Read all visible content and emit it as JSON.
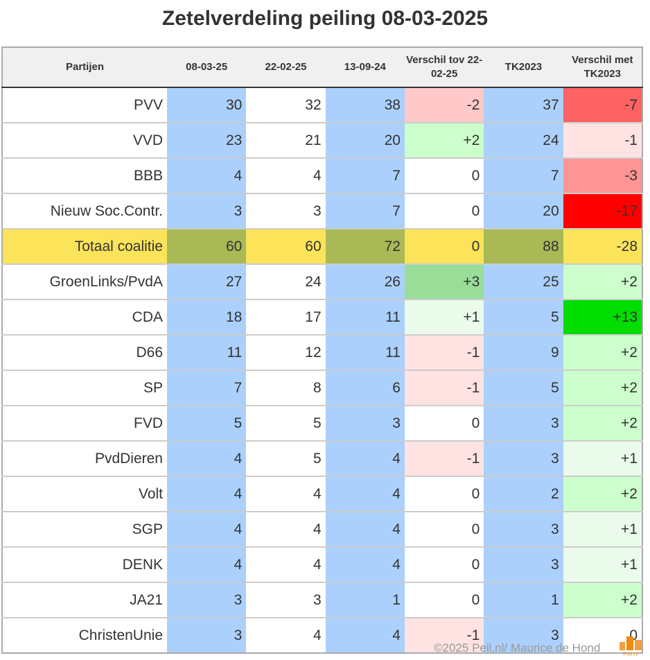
{
  "title": "Zetelverdeling peiling 08-03-2025",
  "footer": "©2025 Peil.nl/ Maurice de Hond",
  "logo_text": "Peil.nl",
  "colors": {
    "blue": "#abd0fb",
    "coalition": "#fbe35a",
    "coalition_blue": "#a8b956"
  },
  "chart_data": {
    "type": "table",
    "title": "Zetelverdeling peiling 08-03-2025",
    "columns": [
      "Partijen",
      "08-03-25",
      "22-02-25",
      "13-09-24",
      "Verschil tov 22-02-25",
      "TK2023",
      "Verschil met TK2023"
    ],
    "rows": [
      {
        "party": "PVV",
        "v": [
          "30",
          "32",
          "38",
          "-2",
          "37",
          "-7"
        ],
        "c4": "#ffc9c9",
        "c6": "#ff6262"
      },
      {
        "party": "VVD",
        "v": [
          "23",
          "21",
          "20",
          "+2",
          "24",
          "-1"
        ],
        "c4": "#ccffcc",
        "c6": "#ffe3e3"
      },
      {
        "party": "BBB",
        "v": [
          "4",
          "4",
          "7",
          "0",
          "7",
          "-3"
        ],
        "c4": "#ffffff",
        "c6": "#ff9494"
      },
      {
        "party": "Nieuw Soc.Contr.",
        "v": [
          "3",
          "3",
          "7",
          "0",
          "20",
          "-17"
        ],
        "c4": "#ffffff",
        "c6": "#ff0000"
      },
      {
        "party": "Totaal coalitie",
        "v": [
          "60",
          "60",
          "72",
          "0",
          "88",
          "-28"
        ],
        "coalition": true
      },
      {
        "party": "GroenLinks/PvdA",
        "v": [
          "27",
          "24",
          "26",
          "+3",
          "25",
          "+2"
        ],
        "c4": "#99dd99",
        "c6": "#ccffcc"
      },
      {
        "party": "CDA",
        "v": [
          "18",
          "17",
          "11",
          "+1",
          "5",
          "+13"
        ],
        "c4": "#ebfbeb",
        "c6": "#00dd00"
      },
      {
        "party": "D66",
        "v": [
          "11",
          "12",
          "11",
          "-1",
          "9",
          "+2"
        ],
        "c4": "#ffe3e3",
        "c6": "#ccffcc"
      },
      {
        "party": "SP",
        "v": [
          "7",
          "8",
          "6",
          "-1",
          "5",
          "+2"
        ],
        "c4": "#ffe3e3",
        "c6": "#ccffcc"
      },
      {
        "party": "FVD",
        "v": [
          "5",
          "5",
          "3",
          "0",
          "3",
          "+2"
        ],
        "c4": "#ffffff",
        "c6": "#ccffcc"
      },
      {
        "party": "PvdDieren",
        "v": [
          "4",
          "5",
          "4",
          "-1",
          "3",
          "+1"
        ],
        "c4": "#ffe3e3",
        "c6": "#ebfbeb"
      },
      {
        "party": "Volt",
        "v": [
          "4",
          "4",
          "4",
          "0",
          "2",
          "+2"
        ],
        "c4": "#ffffff",
        "c6": "#ccffcc"
      },
      {
        "party": "SGP",
        "v": [
          "4",
          "4",
          "4",
          "0",
          "3",
          "+1"
        ],
        "c4": "#ffffff",
        "c6": "#ebfbeb"
      },
      {
        "party": "DENK",
        "v": [
          "4",
          "4",
          "4",
          "0",
          "3",
          "+1"
        ],
        "c4": "#ffffff",
        "c6": "#ebfbeb"
      },
      {
        "party": "JA21",
        "v": [
          "3",
          "3",
          "1",
          "0",
          "1",
          "+2"
        ],
        "c4": "#ffffff",
        "c6": "#ccffcc"
      },
      {
        "party": "ChristenUnie",
        "v": [
          "3",
          "4",
          "4",
          "-1",
          "3",
          "0"
        ],
        "c4": "#ffe3e3",
        "c6": "#ffffff"
      }
    ]
  }
}
